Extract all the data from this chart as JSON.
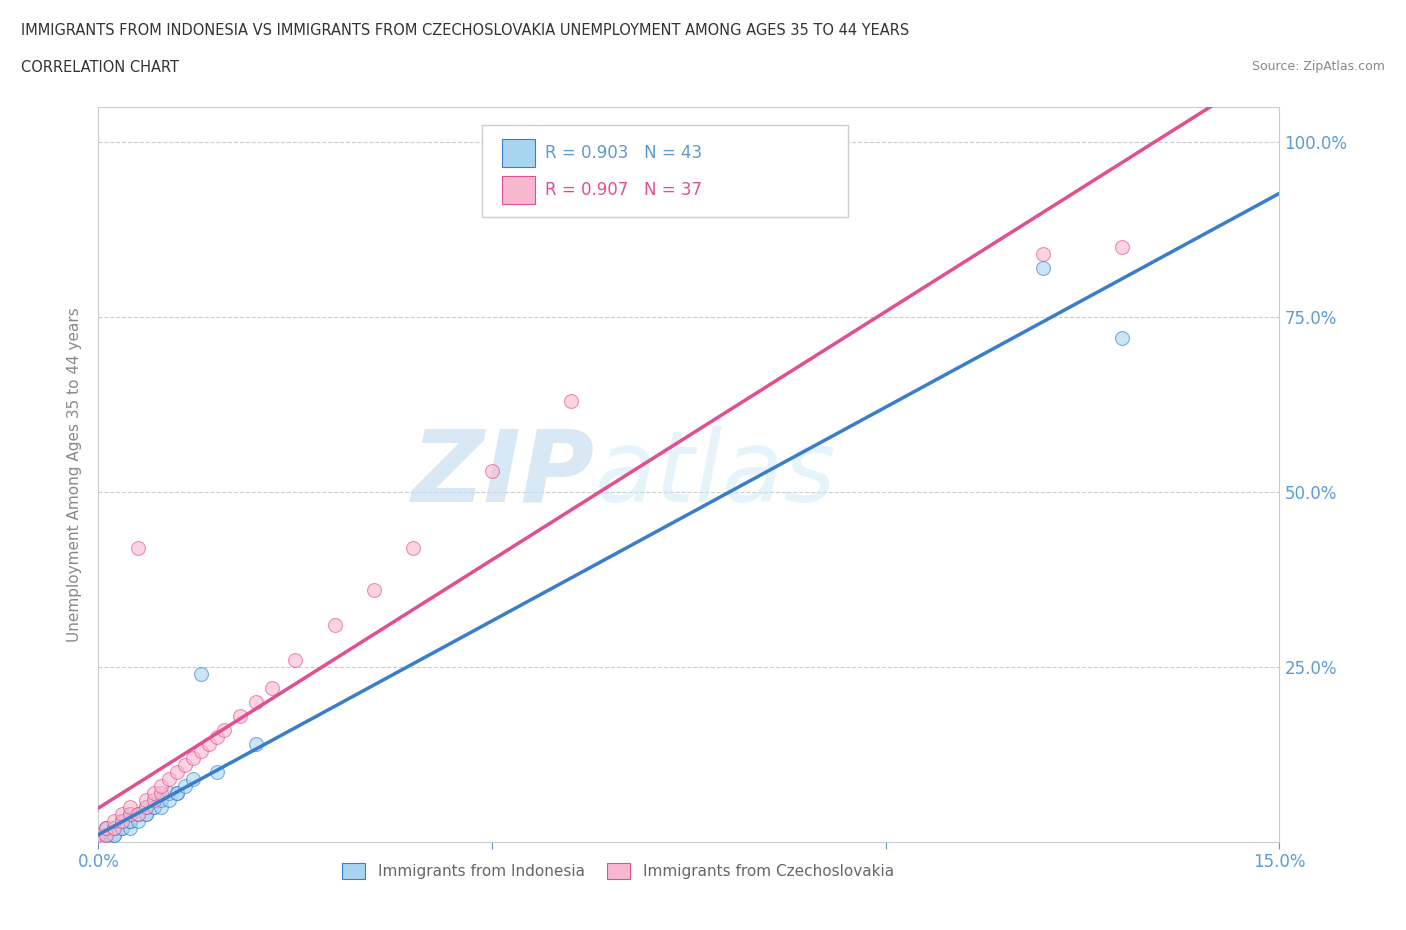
{
  "title_line1": "IMMIGRANTS FROM INDONESIA VS IMMIGRANTS FROM CZECHOSLOVAKIA UNEMPLOYMENT AMONG AGES 35 TO 44 YEARS",
  "title_line2": "CORRELATION CHART",
  "source": "Source: ZipAtlas.com",
  "ylabel": "Unemployment Among Ages 35 to 44 years",
  "x_min": 0.0,
  "x_max": 0.15,
  "y_min": 0.0,
  "y_max": 1.05,
  "legend_r1": "R = 0.903",
  "legend_n1": "N = 43",
  "legend_r2": "R = 0.907",
  "legend_n2": "N = 37",
  "color_indonesia": "#a8d4f0",
  "color_czechoslovakia": "#f7b8cf",
  "line_color_indonesia": "#3a7dc9",
  "line_color_czechoslovakia": "#e05090",
  "watermark_zip": "ZIP",
  "watermark_atlas": "atlas",
  "indo_x": [
    0.0,
    0.0,
    0.0,
    0.0,
    0.001,
    0.001,
    0.001,
    0.001,
    0.001,
    0.002,
    0.002,
    0.002,
    0.002,
    0.003,
    0.003,
    0.003,
    0.003,
    0.003,
    0.004,
    0.004,
    0.004,
    0.004,
    0.005,
    0.005,
    0.005,
    0.006,
    0.006,
    0.006,
    0.007,
    0.007,
    0.008,
    0.008,
    0.009,
    0.009,
    0.01,
    0.01,
    0.011,
    0.012,
    0.013,
    0.015,
    0.02,
    0.12,
    0.13
  ],
  "indo_y": [
    0.0,
    0.0,
    0.0,
    0.0,
    0.0,
    0.01,
    0.01,
    0.02,
    0.02,
    0.01,
    0.01,
    0.02,
    0.02,
    0.02,
    0.02,
    0.03,
    0.03,
    0.03,
    0.02,
    0.03,
    0.03,
    0.04,
    0.03,
    0.04,
    0.04,
    0.04,
    0.04,
    0.05,
    0.05,
    0.05,
    0.05,
    0.06,
    0.06,
    0.07,
    0.07,
    0.07,
    0.08,
    0.09,
    0.24,
    0.1,
    0.14,
    0.82,
    0.72
  ],
  "czech_x": [
    0.0,
    0.0,
    0.001,
    0.001,
    0.002,
    0.002,
    0.003,
    0.003,
    0.004,
    0.004,
    0.005,
    0.005,
    0.006,
    0.006,
    0.007,
    0.007,
    0.008,
    0.008,
    0.009,
    0.01,
    0.011,
    0.012,
    0.013,
    0.014,
    0.015,
    0.016,
    0.018,
    0.02,
    0.022,
    0.025,
    0.03,
    0.035,
    0.04,
    0.05,
    0.06,
    0.12,
    0.13
  ],
  "czech_y": [
    0.0,
    0.01,
    0.01,
    0.02,
    0.02,
    0.03,
    0.03,
    0.04,
    0.04,
    0.05,
    0.04,
    0.42,
    0.05,
    0.06,
    0.06,
    0.07,
    0.07,
    0.08,
    0.09,
    0.1,
    0.11,
    0.12,
    0.13,
    0.14,
    0.15,
    0.16,
    0.18,
    0.2,
    0.22,
    0.26,
    0.31,
    0.36,
    0.42,
    0.53,
    0.63,
    0.84,
    0.85
  ],
  "line_indo_slope": 6.8,
  "line_indo_intercept": -0.01,
  "line_czech_slope": 8.5,
  "line_czech_intercept": -0.04
}
